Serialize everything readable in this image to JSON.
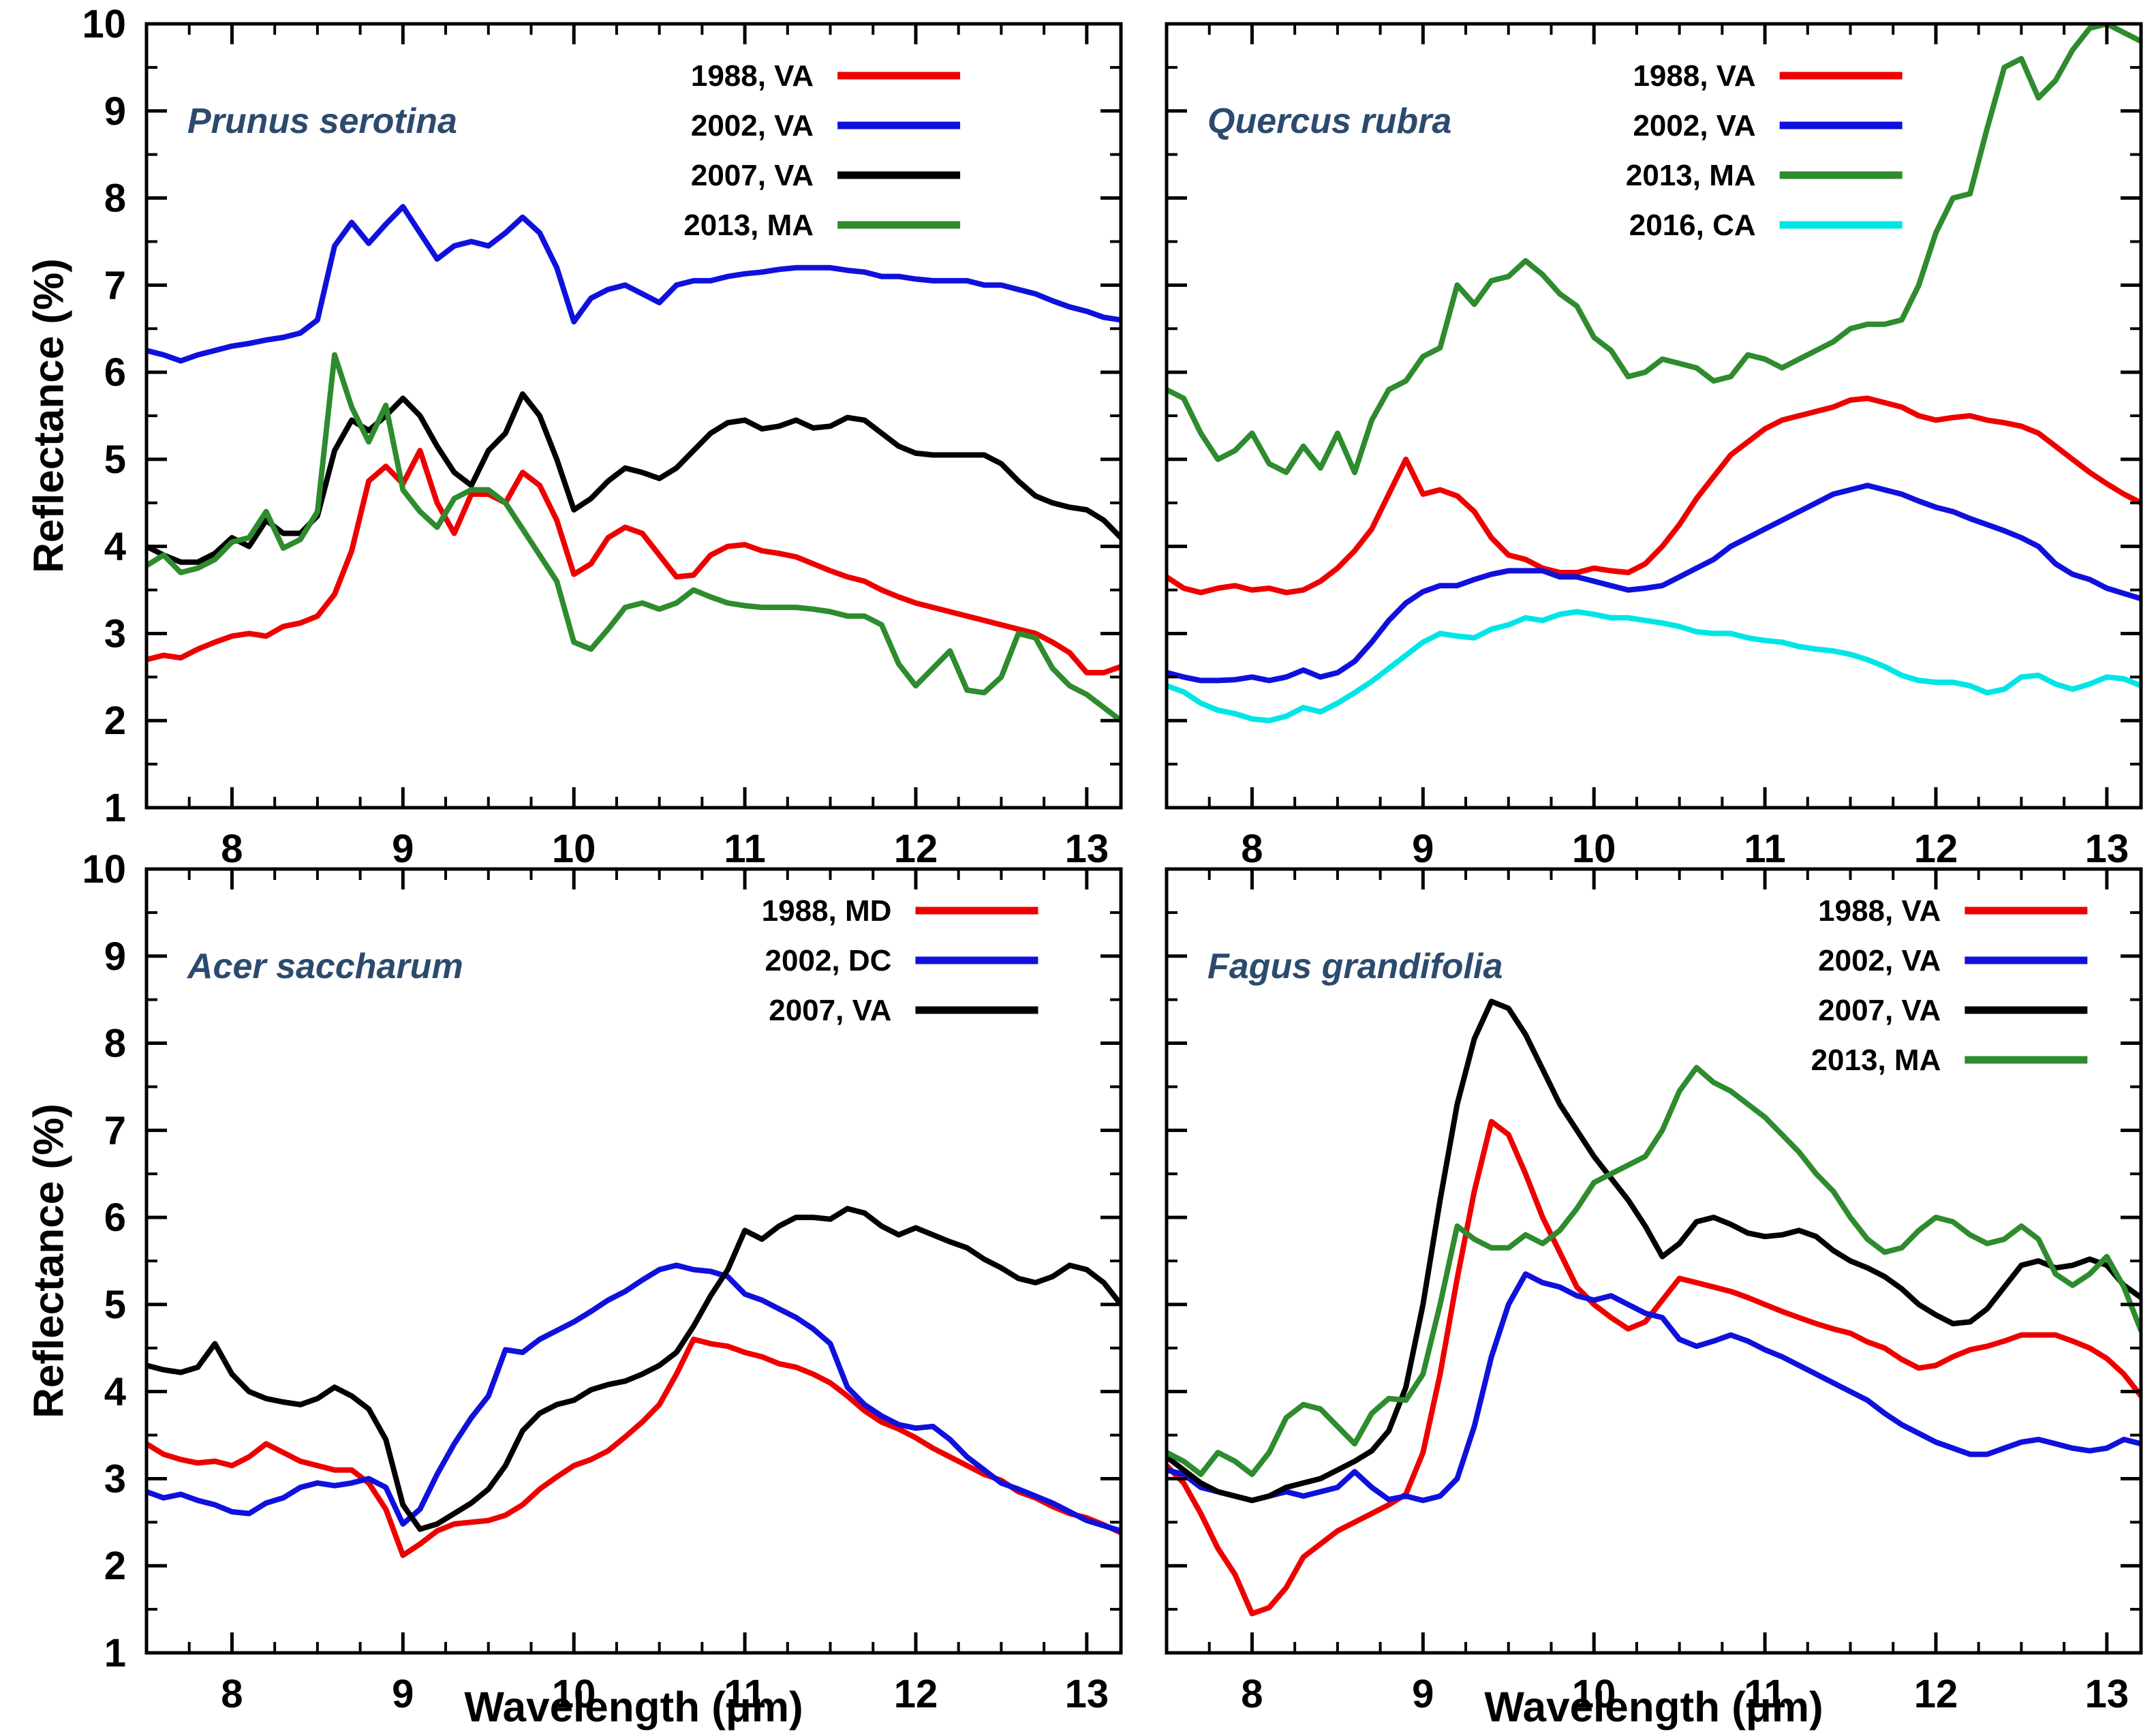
{
  "figure": {
    "background": "#ffffff",
    "title_color": "#2c4a6e"
  },
  "axes": {
    "x_label": "Wavelength  (μm)",
    "y_label": "Reflectance  (%)",
    "xlim": [
      7.5,
      13.2
    ],
    "ylim": [
      1,
      10
    ],
    "x_major_ticks": [
      8,
      9,
      10,
      11,
      12,
      13
    ],
    "x_minor_step": 0.25,
    "y_major_ticks": [
      1,
      2,
      3,
      4,
      5,
      6,
      7,
      8,
      9,
      10
    ],
    "y_minor_step": 0.5,
    "grid": "off",
    "tick_direction": "in",
    "ticks_mirrored": true
  },
  "chart_data": [
    {
      "type": "line",
      "title": "Prunus serotina",
      "legend_position": "top-right",
      "x_start": 7.5,
      "x_step": 0.1,
      "n_points": 58,
      "xlim": [
        7.5,
        13.2
      ],
      "ylim": [
        1,
        10
      ],
      "series": [
        {
          "name": "1988, VA",
          "color": "#ee0000",
          "values": [
            2.7,
            2.75,
            2.72,
            2.82,
            2.9,
            2.97,
            3.0,
            2.97,
            3.08,
            3.12,
            3.2,
            3.45,
            3.95,
            4.75,
            4.92,
            4.72,
            5.1,
            4.5,
            4.15,
            4.6,
            4.6,
            4.5,
            4.85,
            4.7,
            4.3,
            3.68,
            3.8,
            4.1,
            4.22,
            4.15,
            3.9,
            3.65,
            3.67,
            3.9,
            4.0,
            4.02,
            3.95,
            3.92,
            3.88,
            3.8,
            3.72,
            3.65,
            3.6,
            3.5,
            3.42,
            3.35,
            3.3,
            3.25,
            3.2,
            3.15,
            3.1,
            3.05,
            3.0,
            2.9,
            2.78,
            2.55,
            2.55,
            2.62
          ]
        },
        {
          "name": "2002, VA",
          "color": "#1010dd",
          "values": [
            6.25,
            6.2,
            6.13,
            6.2,
            6.25,
            6.3,
            6.33,
            6.37,
            6.4,
            6.45,
            6.6,
            7.45,
            7.72,
            7.48,
            7.7,
            7.9,
            7.6,
            7.3,
            7.45,
            7.5,
            7.45,
            7.6,
            7.78,
            7.6,
            7.2,
            6.58,
            6.85,
            6.95,
            7.0,
            6.9,
            6.8,
            7.0,
            7.05,
            7.05,
            7.1,
            7.13,
            7.15,
            7.18,
            7.2,
            7.2,
            7.2,
            7.17,
            7.15,
            7.1,
            7.1,
            7.07,
            7.05,
            7.05,
            7.05,
            7.0,
            7.0,
            6.95,
            6.9,
            6.82,
            6.75,
            6.7,
            6.63,
            6.6
          ]
        },
        {
          "name": "2007, VA",
          "color": "#000000",
          "values": [
            4.0,
            3.9,
            3.82,
            3.82,
            3.92,
            4.1,
            4.0,
            4.3,
            4.15,
            4.15,
            4.35,
            5.1,
            5.45,
            5.33,
            5.5,
            5.7,
            5.5,
            5.15,
            4.85,
            4.7,
            5.1,
            5.3,
            5.75,
            5.5,
            5.0,
            4.42,
            4.55,
            4.75,
            4.9,
            4.85,
            4.78,
            4.9,
            5.1,
            5.3,
            5.42,
            5.45,
            5.35,
            5.38,
            5.45,
            5.36,
            5.38,
            5.48,
            5.45,
            5.3,
            5.15,
            5.07,
            5.05,
            5.05,
            5.05,
            5.05,
            4.95,
            4.75,
            4.58,
            4.5,
            4.45,
            4.42,
            4.3,
            4.1
          ]
        },
        {
          "name": "2013, MA",
          "color": "#2e8b2e",
          "values": [
            3.78,
            3.9,
            3.7,
            3.75,
            3.85,
            4.05,
            4.1,
            4.4,
            3.98,
            4.08,
            4.4,
            6.2,
            5.6,
            5.2,
            5.62,
            4.65,
            4.4,
            4.22,
            4.55,
            4.65,
            4.65,
            4.5,
            4.2,
            3.9,
            3.6,
            2.9,
            2.82,
            3.05,
            3.3,
            3.35,
            3.28,
            3.35,
            3.5,
            3.42,
            3.35,
            3.32,
            3.3,
            3.3,
            3.3,
            3.28,
            3.25,
            3.2,
            3.2,
            3.1,
            2.65,
            2.4,
            2.6,
            2.8,
            2.35,
            2.32,
            2.5,
            3.0,
            2.95,
            2.6,
            2.4,
            2.3,
            2.15,
            2.0
          ]
        }
      ]
    },
    {
      "type": "line",
      "title": "Quercus rubra",
      "legend_position": "top-right",
      "x_start": 7.5,
      "x_step": 0.1,
      "n_points": 58,
      "xlim": [
        7.5,
        13.2
      ],
      "ylim": [
        1,
        10
      ],
      "series": [
        {
          "name": "1988, VA",
          "color": "#ee0000",
          "values": [
            3.65,
            3.52,
            3.47,
            3.52,
            3.55,
            3.5,
            3.52,
            3.47,
            3.5,
            3.6,
            3.75,
            3.95,
            4.2,
            4.6,
            5.0,
            4.6,
            4.65,
            4.58,
            4.4,
            4.1,
            3.9,
            3.85,
            3.75,
            3.7,
            3.7,
            3.75,
            3.72,
            3.7,
            3.8,
            4.0,
            4.25,
            4.55,
            4.8,
            5.05,
            5.2,
            5.35,
            5.45,
            5.5,
            5.55,
            5.6,
            5.68,
            5.7,
            5.65,
            5.6,
            5.5,
            5.45,
            5.48,
            5.5,
            5.45,
            5.42,
            5.38,
            5.3,
            5.15,
            5.0,
            4.85,
            4.72,
            4.6,
            4.5
          ]
        },
        {
          "name": "2002, VA",
          "color": "#1010dd",
          "values": [
            2.55,
            2.5,
            2.46,
            2.46,
            2.47,
            2.5,
            2.46,
            2.5,
            2.58,
            2.5,
            2.55,
            2.68,
            2.9,
            3.15,
            3.35,
            3.48,
            3.55,
            3.55,
            3.62,
            3.68,
            3.72,
            3.72,
            3.72,
            3.65,
            3.65,
            3.6,
            3.55,
            3.5,
            3.52,
            3.55,
            3.65,
            3.75,
            3.85,
            4.0,
            4.1,
            4.2,
            4.3,
            4.4,
            4.5,
            4.6,
            4.65,
            4.7,
            4.65,
            4.6,
            4.52,
            4.45,
            4.4,
            4.32,
            4.25,
            4.18,
            4.1,
            4.0,
            3.8,
            3.68,
            3.62,
            3.52,
            3.46,
            3.4
          ]
        },
        {
          "name": "2013, MA",
          "color": "#2e8b2e",
          "values": [
            5.8,
            5.7,
            5.3,
            5.0,
            5.1,
            5.3,
            4.95,
            4.85,
            5.15,
            4.9,
            5.3,
            4.85,
            5.45,
            5.8,
            5.9,
            6.18,
            6.28,
            7.0,
            6.78,
            7.05,
            7.1,
            7.28,
            7.12,
            6.9,
            6.76,
            6.4,
            6.25,
            5.95,
            6.0,
            6.15,
            6.1,
            6.05,
            5.9,
            5.95,
            6.2,
            6.15,
            6.05,
            6.15,
            6.25,
            6.35,
            6.5,
            6.55,
            6.55,
            6.6,
            7.0,
            7.6,
            8.0,
            8.05,
            8.8,
            9.5,
            9.6,
            9.15,
            9.35,
            9.7,
            9.95,
            10.0,
            9.9,
            9.8
          ]
        },
        {
          "name": "2016, CA",
          "color": "#00e5e5",
          "values": [
            2.4,
            2.33,
            2.2,
            2.12,
            2.08,
            2.02,
            2.0,
            2.05,
            2.15,
            2.1,
            2.2,
            2.32,
            2.45,
            2.6,
            2.75,
            2.9,
            3.0,
            2.97,
            2.95,
            3.05,
            3.1,
            3.18,
            3.15,
            3.22,
            3.25,
            3.22,
            3.18,
            3.18,
            3.15,
            3.12,
            3.08,
            3.02,
            3.0,
            3.0,
            2.95,
            2.92,
            2.9,
            2.85,
            2.82,
            2.8,
            2.76,
            2.7,
            2.62,
            2.52,
            2.46,
            2.44,
            2.44,
            2.4,
            2.32,
            2.36,
            2.5,
            2.52,
            2.42,
            2.36,
            2.42,
            2.5,
            2.48,
            2.4
          ]
        }
      ]
    },
    {
      "type": "line",
      "title": "Acer saccharum",
      "legend_position": "top-right",
      "x_start": 7.5,
      "x_step": 0.1,
      "n_points": 58,
      "xlim": [
        7.5,
        13.2
      ],
      "ylim": [
        1,
        10
      ],
      "series": [
        {
          "name": "1988, MD",
          "color": "#ee0000",
          "values": [
            3.4,
            3.28,
            3.22,
            3.18,
            3.2,
            3.15,
            3.25,
            3.4,
            3.3,
            3.2,
            3.15,
            3.1,
            3.1,
            2.95,
            2.65,
            2.12,
            2.25,
            2.4,
            2.48,
            2.5,
            2.52,
            2.58,
            2.7,
            2.88,
            3.02,
            3.15,
            3.22,
            3.32,
            3.48,
            3.65,
            3.85,
            4.2,
            4.6,
            4.55,
            4.52,
            4.45,
            4.4,
            4.32,
            4.28,
            4.2,
            4.1,
            3.95,
            3.78,
            3.65,
            3.57,
            3.47,
            3.35,
            3.25,
            3.15,
            3.05,
            2.98,
            2.85,
            2.78,
            2.68,
            2.6,
            2.55,
            2.47,
            2.38
          ]
        },
        {
          "name": "2002, DC",
          "color": "#1010dd",
          "values": [
            2.85,
            2.78,
            2.82,
            2.75,
            2.7,
            2.62,
            2.6,
            2.72,
            2.78,
            2.9,
            2.95,
            2.92,
            2.95,
            3.0,
            2.9,
            2.48,
            2.65,
            3.05,
            3.4,
            3.7,
            3.95,
            4.48,
            4.45,
            4.6,
            4.7,
            4.8,
            4.92,
            5.05,
            5.15,
            5.28,
            5.4,
            5.45,
            5.4,
            5.38,
            5.32,
            5.12,
            5.05,
            4.95,
            4.85,
            4.72,
            4.55,
            4.05,
            3.85,
            3.72,
            3.62,
            3.58,
            3.6,
            3.45,
            3.25,
            3.1,
            2.95,
            2.88,
            2.8,
            2.72,
            2.62,
            2.52,
            2.46,
            2.4
          ]
        },
        {
          "name": "2007, VA",
          "color": "#000000",
          "values": [
            4.3,
            4.25,
            4.22,
            4.28,
            4.55,
            4.2,
            4.0,
            3.92,
            3.88,
            3.85,
            3.92,
            4.05,
            3.95,
            3.8,
            3.45,
            2.7,
            2.42,
            2.48,
            2.6,
            2.72,
            2.88,
            3.15,
            3.55,
            3.75,
            3.85,
            3.9,
            4.02,
            4.08,
            4.12,
            4.2,
            4.3,
            4.45,
            4.75,
            5.1,
            5.4,
            5.85,
            5.75,
            5.9,
            6.0,
            6.0,
            5.98,
            6.1,
            6.05,
            5.9,
            5.8,
            5.88,
            5.8,
            5.72,
            5.65,
            5.52,
            5.42,
            5.3,
            5.25,
            5.32,
            5.45,
            5.4,
            5.25,
            5.0
          ]
        }
      ]
    },
    {
      "type": "line",
      "title": "Fagus grandifolia",
      "legend_position": "top-right",
      "x_start": 7.5,
      "x_step": 0.1,
      "n_points": 58,
      "xlim": [
        7.5,
        13.2
      ],
      "ylim": [
        1,
        10
      ],
      "series": [
        {
          "name": "1988, VA",
          "color": "#ee0000",
          "values": [
            3.15,
            2.95,
            2.6,
            2.2,
            1.9,
            1.45,
            1.52,
            1.75,
            2.1,
            2.25,
            2.4,
            2.5,
            2.6,
            2.7,
            2.82,
            3.3,
            4.2,
            5.3,
            6.3,
            7.1,
            6.95,
            6.5,
            6.0,
            5.6,
            5.2,
            5.0,
            4.85,
            4.72,
            4.8,
            5.05,
            5.3,
            5.25,
            5.2,
            5.15,
            5.08,
            5.0,
            4.92,
            4.85,
            4.78,
            4.72,
            4.67,
            4.57,
            4.5,
            4.37,
            4.27,
            4.3,
            4.4,
            4.48,
            4.52,
            4.58,
            4.65,
            4.65,
            4.65,
            4.58,
            4.5,
            4.38,
            4.2,
            3.95
          ]
        },
        {
          "name": "2002, VA",
          "color": "#1010dd",
          "values": [
            3.1,
            3.05,
            2.9,
            2.85,
            2.8,
            2.75,
            2.8,
            2.85,
            2.8,
            2.85,
            2.9,
            3.08,
            2.9,
            2.76,
            2.8,
            2.75,
            2.8,
            3.0,
            3.6,
            4.4,
            5.0,
            5.35,
            5.25,
            5.2,
            5.1,
            5.05,
            5.1,
            5.0,
            4.9,
            4.85,
            4.6,
            4.52,
            4.58,
            4.65,
            4.58,
            4.48,
            4.4,
            4.3,
            4.2,
            4.1,
            4.0,
            3.9,
            3.75,
            3.62,
            3.52,
            3.42,
            3.35,
            3.28,
            3.28,
            3.35,
            3.42,
            3.45,
            3.4,
            3.35,
            3.32,
            3.35,
            3.45,
            3.4
          ]
        },
        {
          "name": "2007, VA",
          "color": "#000000",
          "values": [
            3.25,
            3.1,
            2.95,
            2.85,
            2.8,
            2.75,
            2.8,
            2.9,
            2.95,
            3.0,
            3.1,
            3.2,
            3.32,
            3.55,
            4.05,
            5.0,
            6.2,
            7.3,
            8.05,
            8.48,
            8.4,
            8.1,
            7.7,
            7.3,
            7.0,
            6.7,
            6.45,
            6.2,
            5.9,
            5.55,
            5.7,
            5.95,
            6.0,
            5.92,
            5.82,
            5.78,
            5.8,
            5.85,
            5.78,
            5.62,
            5.5,
            5.42,
            5.32,
            5.18,
            5.0,
            4.88,
            4.78,
            4.8,
            4.95,
            5.2,
            5.45,
            5.5,
            5.42,
            5.45,
            5.52,
            5.45,
            5.22,
            5.08
          ]
        },
        {
          "name": "2013, MA",
          "color": "#2e8b2e",
          "values": [
            3.3,
            3.2,
            3.05,
            3.3,
            3.2,
            3.05,
            3.3,
            3.7,
            3.85,
            3.8,
            3.6,
            3.4,
            3.75,
            3.92,
            3.9,
            4.2,
            5.0,
            5.9,
            5.75,
            5.65,
            5.65,
            5.8,
            5.7,
            5.85,
            6.1,
            6.4,
            6.5,
            6.6,
            6.7,
            7.0,
            7.45,
            7.72,
            7.55,
            7.45,
            7.3,
            7.15,
            6.95,
            6.75,
            6.5,
            6.3,
            6.0,
            5.75,
            5.6,
            5.65,
            5.85,
            6.0,
            5.95,
            5.8,
            5.7,
            5.75,
            5.9,
            5.75,
            5.35,
            5.22,
            5.35,
            5.55,
            5.2,
            4.7
          ]
        }
      ]
    }
  ]
}
